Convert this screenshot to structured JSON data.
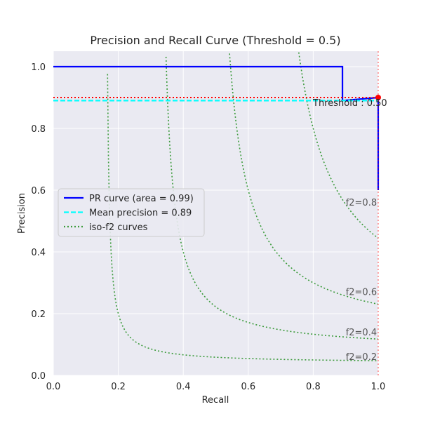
{
  "chart_data": {
    "type": "line",
    "title": "Precision and Recall Curve (Threshold = 0.5)",
    "xlabel": "Recall",
    "ylabel": "Precision",
    "xlim": [
      0.0,
      1.0
    ],
    "ylim": [
      0.0,
      1.05
    ],
    "xticks": [
      "0.0",
      "0.2",
      "0.4",
      "0.6",
      "0.8",
      "1.0"
    ],
    "yticks": [
      "0.0",
      "0.2",
      "0.4",
      "0.6",
      "0.8",
      "1.0"
    ],
    "grid": true,
    "legend_position": "center-left",
    "series": [
      {
        "name": "PR curve (area = 0.99)",
        "color": "#0000ff",
        "style": "solid",
        "x": [
          0.0,
          0.89,
          0.89,
          1.0,
          1.0
        ],
        "y": [
          1.0,
          1.0,
          0.89,
          0.9,
          0.6
        ]
      },
      {
        "name": "Mean precision = 0.89",
        "color": "#00ffff",
        "style": "dashed",
        "x": [
          0.0,
          1.0
        ],
        "y": [
          0.89,
          0.89
        ]
      }
    ],
    "iso_f2": {
      "name": "iso-f2 curves",
      "color": "#3a9a3a",
      "style": "dotted",
      "values": [
        0.2,
        0.4,
        0.6,
        0.8
      ],
      "labels": [
        "f2=0.2",
        "f2=0.4",
        "f2=0.6",
        "f2=0.8"
      ],
      "label_y": [
        0.05,
        0.13,
        0.26,
        0.55
      ]
    },
    "threshold_marker": {
      "label": "Threshold : 0.50",
      "recall": 1.0,
      "precision": 0.9,
      "hline_color": "#ff0000",
      "vline_color": "#ff0000"
    }
  }
}
